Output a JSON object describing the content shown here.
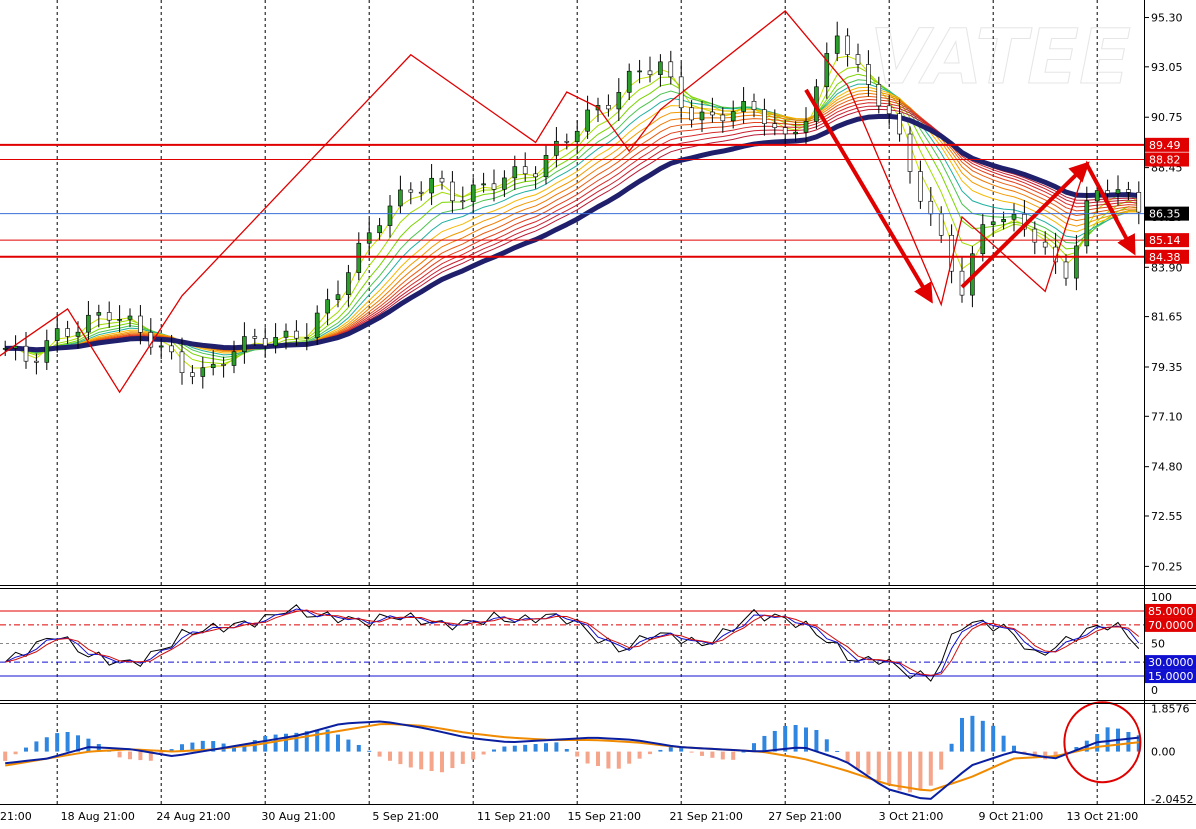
{
  "watermark": "VATEE",
  "colors": {
    "level_line": "#e00000",
    "current_line": "#3b6fd6",
    "ma_slow": "#1f1f6b",
    "macd_pos": "#2f86e0",
    "macd_neg": "#f4a58a",
    "macd_line": "#0a1fa0",
    "signal_line": "#f08a00",
    "zigzag": "#e00000",
    "stoch_k": "#000000",
    "stoch_d": "#d01010",
    "stoch_main": "#1010d0",
    "osc_upper": "#e00000",
    "osc_lower": "#1010d0"
  },
  "chart_data": [
    {
      "type": "line",
      "name": "price",
      "y_ticks": [
        "95.30",
        "93.05",
        "90.75",
        "88.45",
        "86.20",
        "83.90",
        "81.65",
        "79.35",
        "77.10",
        "74.80",
        "72.55",
        "70.25"
      ],
      "ylim": [
        69.4,
        96.1
      ],
      "x_ticks": [
        "21:00",
        "18 Aug 21:00",
        "24 Aug 21:00",
        "30 Aug 21:00",
        "5 Sep 21:00",
        "11 Sep 21:00",
        "15 Sep 21:00",
        "21 Sep 21:00",
        "27 Sep 21:00",
        "3 Oct 21:00",
        "9 Oct 21:00",
        "13 Oct 21:00"
      ],
      "price_tags": [
        {
          "value": 89.49,
          "label": "89.49",
          "style": "level"
        },
        {
          "value": 88.82,
          "label": "88.82",
          "style": "level"
        },
        {
          "value": 86.35,
          "label": "86.35",
          "style": "current"
        },
        {
          "value": 85.14,
          "label": "85.14",
          "style": "level"
        },
        {
          "value": 84.38,
          "label": "84.38",
          "style": "level"
        }
      ],
      "close": [
        80.2,
        79.6,
        80.8,
        81.2,
        81.9,
        81.3,
        80.4,
        79.3,
        79.0,
        80.1,
        80.7,
        80.6,
        81.0,
        82.5,
        84.6,
        86.4,
        87.4,
        87.8,
        87.0,
        87.6,
        88.1,
        88.3,
        89.5,
        90.7,
        91.5,
        92.8,
        93.2,
        91.0,
        90.6,
        91.2,
        91.0,
        89.6,
        91.2,
        94.8,
        92.5,
        91.2,
        88.1,
        85.5,
        82.8,
        86.4,
        86.0,
        85.3,
        83.2,
        86.9,
        87.8,
        86.4
      ],
      "zigzag": [
        {
          "i": -1,
          "v": 79.7
        },
        {
          "i": 6,
          "v": 82.0
        },
        {
          "i": 11,
          "v": 78.2
        },
        {
          "i": 17,
          "v": 82.6
        },
        {
          "i": 39,
          "v": 93.6
        },
        {
          "i": 51,
          "v": 89.6
        },
        {
          "i": 54,
          "v": 91.9
        },
        {
          "i": 57,
          "v": 91.2
        },
        {
          "i": 60,
          "v": 89.2
        },
        {
          "i": 63,
          "v": 91.1
        },
        {
          "i": 75,
          "v": 95.6
        },
        {
          "i": 81,
          "v": 92.2
        },
        {
          "i": 90,
          "v": 82.2
        },
        {
          "i": 92,
          "v": 86.2
        },
        {
          "i": 100,
          "v": 82.8
        },
        {
          "i": 104,
          "v": 88.7
        },
        {
          "i": 107,
          "v": 86.1
        }
      ]
    },
    {
      "type": "line",
      "name": "oscillator",
      "y_ticks": [
        "100",
        "50",
        "0"
      ],
      "ylim": [
        0,
        100
      ],
      "level_tags": [
        {
          "value": 85,
          "label": "85.0000",
          "style": "upper"
        },
        {
          "value": 70,
          "label": "70.0000",
          "style": "upper"
        },
        {
          "value": 30,
          "label": "30.0000",
          "style": "lower"
        },
        {
          "value": 15,
          "label": "15.0000",
          "style": "lower"
        }
      ],
      "values": [
        30,
        45,
        60,
        40,
        32,
        28,
        42,
        62,
        66,
        70,
        75,
        88,
        80,
        78,
        72,
        80,
        76,
        70,
        72,
        78,
        74,
        80,
        76,
        55,
        42,
        60,
        58,
        48,
        62,
        82,
        78,
        70,
        52,
        30,
        34,
        18,
        12,
        70,
        72,
        64,
        36,
        50,
        64,
        72,
        48
      ]
    },
    {
      "type": "bar",
      "name": "macd",
      "y_ticks": [
        "1.8576",
        "0.00",
        "-2.0452"
      ],
      "ylim": [
        -2.25,
        2.0
      ],
      "histogram": [
        -0.4,
        0.4,
        0.9,
        0.5,
        -0.3,
        -0.4,
        0.3,
        0.5,
        0.2,
        0.7,
        0.8,
        1.0,
        0.4,
        -0.3,
        -0.7,
        -0.9,
        -0.4,
        0.2,
        0.3,
        0.4,
        -0.5,
        -0.8,
        -0.2,
        0.3,
        -0.2,
        -0.4,
        0.6,
        1.2,
        0.9,
        -0.5,
        -1.2,
        -1.8,
        -1.4,
        1.7,
        1.1,
        -0.1,
        -0.4,
        0.3,
        1.1,
        0.7
      ],
      "macd": [
        -0.5,
        -0.3,
        0.2,
        0.1,
        -0.2,
        0.1,
        0.4,
        0.7,
        1.2,
        1.3,
        1.0,
        0.6,
        0.4,
        0.5,
        0.6,
        0.5,
        0.2,
        0.1,
        0.0,
        0.2,
        -0.4,
        -1.6,
        -2.1,
        -0.6,
        0.0,
        -0.3,
        0.4,
        0.6
      ],
      "signal": [
        -0.6,
        -0.3,
        0.0,
        0.1,
        0.0,
        0.1,
        0.3,
        0.6,
        0.9,
        1.2,
        1.1,
        0.8,
        0.6,
        0.5,
        0.5,
        0.4,
        0.2,
        0.1,
        0.0,
        -0.3,
        -0.8,
        -1.4,
        -1.7,
        -1.1,
        -0.3,
        -0.2,
        0.2,
        0.4
      ]
    }
  ]
}
